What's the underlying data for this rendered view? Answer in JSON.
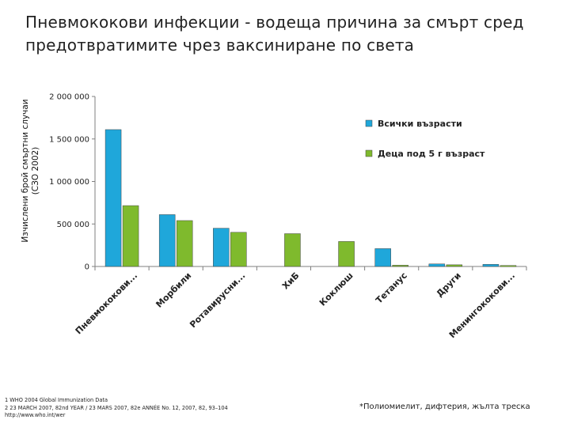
{
  "title_lines": [
    "Пневмококови инфекции - водеща причина за смърт сред",
    "предотвратимите чрез ваксиниране по света"
  ],
  "chart_data": {
    "type": "bar",
    "ylabel_lines": [
      "Изчислени брой смъртни случаи",
      "(СЗО 2002)"
    ],
    "ylim": [
      0,
      2000000
    ],
    "yticks": [
      0,
      500000,
      1000000,
      1500000,
      2000000
    ],
    "ytick_labels": [
      "0",
      "500 000",
      "1 000 000",
      "1 500 000",
      "2 000 000"
    ],
    "categories": [
      "Пневмококови...",
      "Морбили",
      "Ротавирусни...",
      "ХиБ",
      "Коклюш",
      "Тетанус",
      "Други",
      "Менингококови..."
    ],
    "series": [
      {
        "name": "Всички възрасти",
        "color": "#1fa7da",
        "values": [
          1610000,
          610000,
          450000,
          null,
          null,
          210000,
          30000,
          25000
        ]
      },
      {
        "name": "Деца под 5 г възраст",
        "color": "#7fba2d",
        "values": [
          716000,
          540000,
          402000,
          386000,
          294000,
          15000,
          20000,
          12000
        ]
      }
    ],
    "legend_position": "top-right",
    "grid": false
  },
  "footnotes": [
    "1 WHO 2004 Global Immunization Data",
    "2 23 MARCH 2007, 82nd YEAR / 23 MARS 2007, 82e ANNÉE No. 12, 2007, 82, 93–104",
    "http://www.who.int/wer"
  ],
  "note": "*Полиомиелит, дифтерия, жълта треска"
}
